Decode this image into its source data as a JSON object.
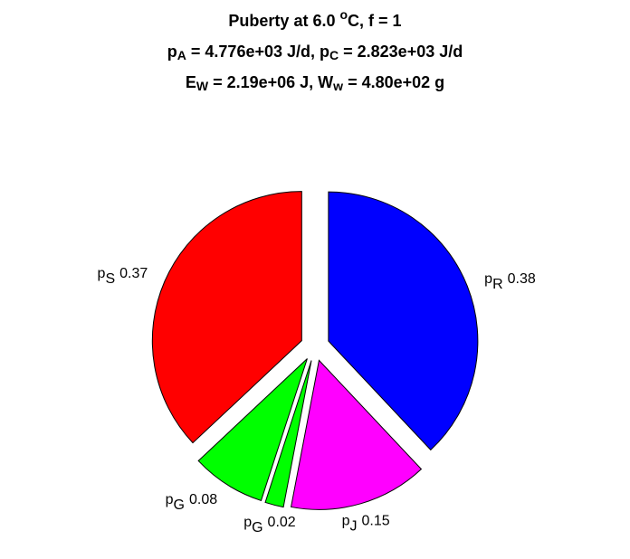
{
  "chart_data": {
    "type": "pie",
    "title": [
      [
        {
          "text": "Puberty at 6.0 "
        },
        {
          "text": "o",
          "sup": true
        },
        {
          "text": "C, f = 1"
        }
      ],
      [
        {
          "text": "p"
        },
        {
          "text": "A",
          "sub": true
        },
        {
          "text": " = 4.776e+03 J/d,  p"
        },
        {
          "text": "C",
          "sub": true
        },
        {
          "text": " = 2.823e+03 J/d"
        }
      ],
      [
        {
          "text": "E"
        },
        {
          "text": "W",
          "sub": true
        },
        {
          "text": " = 2.19e+06 J, W"
        },
        {
          "text": "w",
          "sub": true
        },
        {
          "text": " = 4.80e+02 g"
        }
      ]
    ],
    "slices": [
      {
        "name": "p",
        "sub": "R",
        "color": "#0000ff"
      },
      {
        "name": "p",
        "sub": "J",
        "color": "#ff00ff"
      },
      {
        "name": "p",
        "sub": "G",
        "color": "#00ff00"
      },
      {
        "name": "p",
        "sub": "G",
        "color": "#00ff00"
      },
      {
        "name": "p",
        "sub": "S",
        "color": "#ff0000"
      }
    ],
    "values": [
      0.38,
      0.15,
      0.02,
      0.08,
      0.37
    ],
    "explode": true
  }
}
